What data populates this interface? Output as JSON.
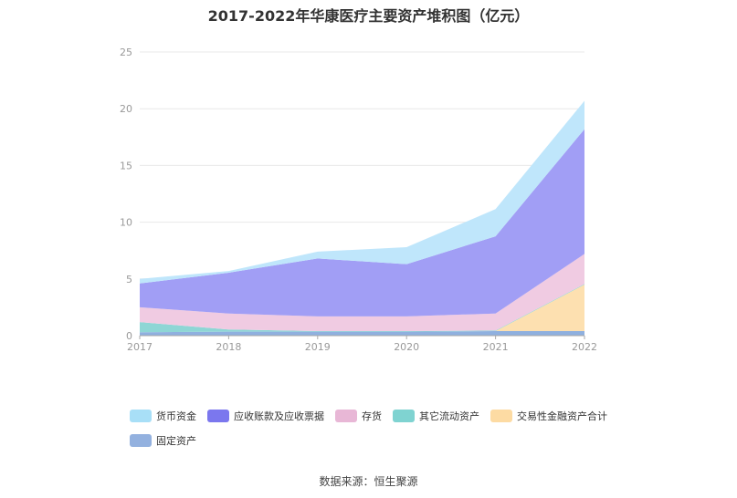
{
  "title": "2017-2022年华康医疗主要资产堆积图（亿元）",
  "source": "数据来源：恒生聚源",
  "chart_data": {
    "type": "area",
    "stacked": true,
    "title": "2017-2022年华康医疗主要资产堆积图（亿元）",
    "xlabel": "",
    "ylabel": "",
    "categories": [
      "2017",
      "2018",
      "2019",
      "2020",
      "2021",
      "2022"
    ],
    "ylim": [
      0,
      25
    ],
    "yticks": [
      0,
      5,
      10,
      15,
      20,
      25
    ],
    "grid": true,
    "legend_position": "bottom",
    "series": [
      {
        "name": "固定资产",
        "color": "#8fb0df",
        "values": [
          0.3,
          0.35,
          0.35,
          0.35,
          0.4,
          0.4
        ]
      },
      {
        "name": "交易性金融资产合计",
        "color": "#fde0b0",
        "values": [
          0,
          0,
          0,
          0,
          0,
          4.1
        ]
      },
      {
        "name": "其它流动资产",
        "color": "#8ed6d5",
        "values": [
          0.9,
          0.2,
          0.05,
          0.05,
          0.05,
          0.05
        ]
      },
      {
        "name": "存货",
        "color": "#f0cbe2",
        "values": [
          1.3,
          1.4,
          1.3,
          1.3,
          1.5,
          2.65
        ]
      },
      {
        "name": "应收账款及应收票据",
        "color": "#a19ef5",
        "values": [
          2.1,
          3.6,
          5.1,
          4.6,
          6.8,
          11.0
        ]
      },
      {
        "name": "货币资金",
        "color": "#bfe6fb",
        "values": [
          0.4,
          0.15,
          0.6,
          1.5,
          2.4,
          2.5
        ]
      }
    ]
  },
  "legend": [
    {
      "name": "货币资金",
      "color": "#a8dff7"
    },
    {
      "name": "应收账款及应收票据",
      "color": "#7b77ee"
    },
    {
      "name": "存货",
      "color": "#e8b7d6"
    },
    {
      "name": "其它流动资产",
      "color": "#7fd3d1"
    },
    {
      "name": "交易性金融资产合计",
      "color": "#fddba3"
    },
    {
      "name": "固定资产",
      "color": "#93b1df"
    }
  ]
}
